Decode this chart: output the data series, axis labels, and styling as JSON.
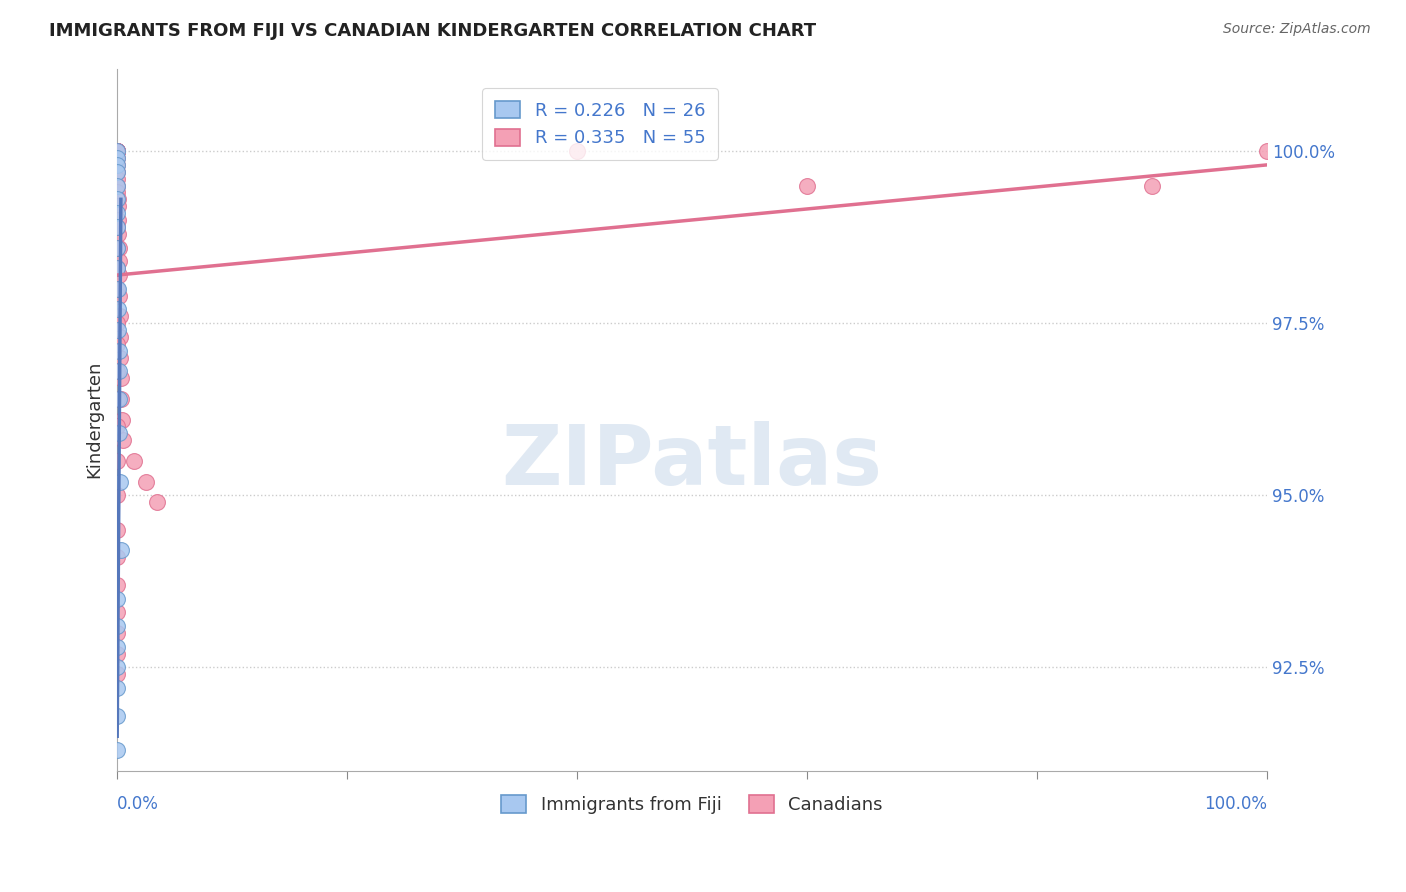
{
  "title": "IMMIGRANTS FROM FIJI VS CANADIAN KINDERGARTEN CORRELATION CHART",
  "source": "Source: ZipAtlas.com",
  "ylabel": "Kindergarten",
  "ytick_values": [
    92.5,
    95.0,
    97.5,
    100.0
  ],
  "xlim": [
    0.0,
    100.0
  ],
  "ylim": [
    91.0,
    101.2
  ],
  "legend_fiji_r": "R = 0.226",
  "legend_fiji_n": "N = 26",
  "legend_canada_r": "R = 0.335",
  "legend_canada_n": "N = 55",
  "fiji_color": "#a8c8f0",
  "canada_color": "#f4a0b5",
  "fiji_edge_color": "#6699cc",
  "canada_edge_color": "#e07090",
  "fiji_line_color": "#5577bb",
  "canada_line_color": "#e07090",
  "background_color": "#ffffff",
  "fiji_x": [
    0.0,
    0.0,
    0.0,
    0.0,
    0.0,
    0.0,
    0.0,
    0.0,
    0.0,
    0.0,
    0.05,
    0.08,
    0.1,
    0.12,
    0.15,
    0.18,
    0.2,
    0.25,
    0.3,
    0.0,
    0.0,
    0.0,
    0.0,
    0.0,
    0.0,
    0.0
  ],
  "fiji_y": [
    100.0,
    99.9,
    99.8,
    99.7,
    99.5,
    99.3,
    99.1,
    98.9,
    98.6,
    98.3,
    98.0,
    97.7,
    97.4,
    97.1,
    96.8,
    96.4,
    95.9,
    95.2,
    94.2,
    93.5,
    93.1,
    92.8,
    92.5,
    92.2,
    91.8,
    91.3
  ],
  "canada_x": [
    0.0,
    0.0,
    0.0,
    0.0,
    0.0,
    0.0,
    0.0,
    0.0,
    0.0,
    0.0,
    0.0,
    0.0,
    0.0,
    0.0,
    0.0,
    0.05,
    0.05,
    0.08,
    0.1,
    0.12,
    0.15,
    0.18,
    0.2,
    0.22,
    0.25,
    0.28,
    0.3,
    0.35,
    0.4,
    0.5,
    1.5,
    2.5,
    3.5,
    40.0,
    60.0,
    90.0,
    100.0,
    0.0,
    0.0,
    0.0,
    0.0,
    0.0,
    0.0,
    0.0,
    0.0,
    0.0,
    0.0,
    0.0,
    0.0,
    0.0,
    0.0,
    0.0,
    0.0,
    0.0,
    0.0
  ],
  "canada_y": [
    100.0,
    100.0,
    100.0,
    100.0,
    100.0,
    100.0,
    100.0,
    100.0,
    100.0,
    99.9,
    99.8,
    99.7,
    99.6,
    99.5,
    99.4,
    99.3,
    99.2,
    99.0,
    98.8,
    98.6,
    98.4,
    98.2,
    97.9,
    97.6,
    97.3,
    97.0,
    96.7,
    96.4,
    96.1,
    95.8,
    95.5,
    95.2,
    94.9,
    100.0,
    99.5,
    99.5,
    100.0,
    98.9,
    98.6,
    98.3,
    98.0,
    97.5,
    97.2,
    96.8,
    96.4,
    96.0,
    95.5,
    95.0,
    94.5,
    94.1,
    93.7,
    93.3,
    93.0,
    92.7,
    92.4
  ],
  "fiji_trend_x": [
    0.0,
    0.32
  ],
  "fiji_trend_y": [
    91.5,
    99.3
  ],
  "canada_trend_x": [
    0.0,
    100.0
  ],
  "canada_trend_y": [
    98.2,
    99.8
  ]
}
